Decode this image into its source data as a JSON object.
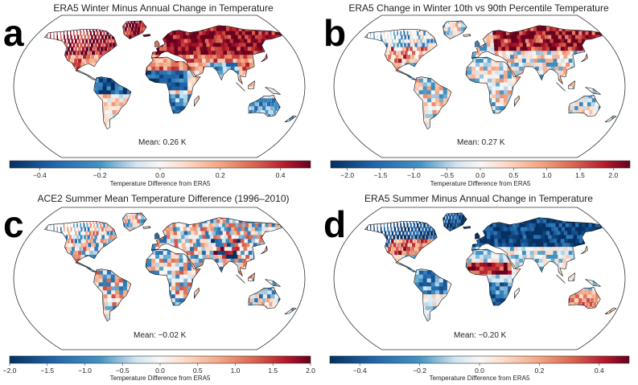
{
  "colors": {
    "cold": "#053061",
    "mid_cold": "#4393c3",
    "light_cold": "#d1e5f0",
    "neutral": "#f7f7f7",
    "light_warm": "#fddbc7",
    "mid_warm": "#d6604d",
    "warm": "#67001f"
  },
  "chart_data": [
    {
      "panel": "a",
      "type": "heatmap",
      "title": "ERA5 Winter Minus Annual Change in Temperature",
      "mean_label": "Mean: 0.26 K",
      "colorbar": {
        "label": "Temperature Difference from ERA5",
        "range": [
          -0.5,
          0.5
        ],
        "ticks": [
          -0.4,
          -0.2,
          0.0,
          0.2,
          0.4
        ],
        "tick_labels": [
          "−0.4",
          "−0.2",
          "0.0",
          "0.2",
          "0.4"
        ]
      },
      "pattern": "winter"
    },
    {
      "panel": "b",
      "type": "heatmap",
      "title": "ERA5 Change in Winter 10th vs 90th Percentile Temperature",
      "mean_label": "Mean: 0.27 K",
      "colorbar": {
        "label": "Temperature Difference from ERA5",
        "range": [
          -2.25,
          2.25
        ],
        "ticks": [
          -2.0,
          -1.5,
          -1.0,
          -0.5,
          0.0,
          0.5,
          1.0,
          1.5,
          2.0
        ],
        "tick_labels": [
          "−2.0",
          "−1.5",
          "−1.0",
          "−0.5",
          "0.0",
          "0.5",
          "1.0",
          "1.5",
          "2.0"
        ]
      },
      "pattern": "percentile"
    },
    {
      "panel": "c",
      "type": "heatmap",
      "title": "ACE2 Summer Mean Temperature Difference (1996–2010)",
      "mean_label": "Mean: −0.02 K",
      "colorbar": {
        "label": "Temperature Difference from ERA5",
        "range": [
          -2.0,
          2.0
        ],
        "ticks": [
          -2.0,
          -1.5,
          -1.0,
          -0.5,
          0.0,
          0.5,
          1.0,
          1.5,
          2.0
        ],
        "tick_labels": [
          "−2.0",
          "−1.5",
          "−1.0",
          "−0.5",
          "0.0",
          "0.5",
          "1.0",
          "1.5",
          "2.0"
        ]
      },
      "pattern": "noise"
    },
    {
      "panel": "d",
      "type": "heatmap",
      "title": "ERA5 Summer Minus Annual Change in Temperature",
      "mean_label": "Mean: −0.20 K",
      "colorbar": {
        "label": "Temperature Difference from ERA5",
        "range": [
          -0.5,
          0.5
        ],
        "ticks": [
          -0.4,
          -0.2,
          0.0,
          0.2,
          0.4
        ],
        "tick_labels": [
          "−0.4",
          "−0.2",
          "0.0",
          "0.2",
          "0.4"
        ]
      },
      "pattern": "summer"
    }
  ]
}
